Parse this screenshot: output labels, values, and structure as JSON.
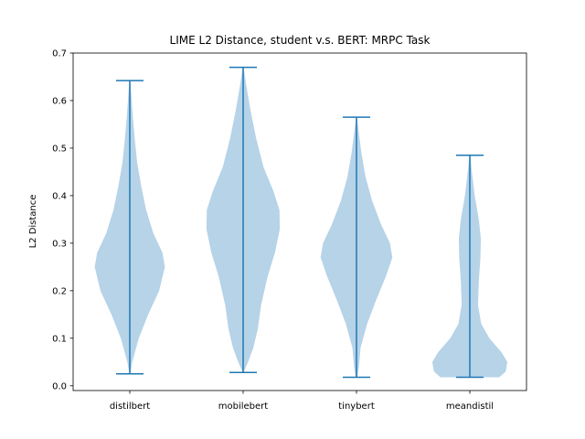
{
  "chart_data": {
    "type": "violin",
    "title": "LIME L2 Distance, student v.s. BERT: MRPC Task",
    "xlabel": "",
    "ylabel": "L2 Distance",
    "ylim": [
      -0.01,
      0.7
    ],
    "yticks": [
      0.0,
      0.1,
      0.2,
      0.3,
      0.4,
      0.5,
      0.6,
      0.7
    ],
    "ytick_labels": [
      "0.0",
      "0.1",
      "0.2",
      "0.3",
      "0.4",
      "0.5",
      "0.6",
      "0.7"
    ],
    "grid": false,
    "colors": {
      "body": "#b6d3e8",
      "lines": "#1f77b4",
      "axis": "#000000"
    },
    "categories": [
      "distilbert",
      "mobilebert",
      "tinybert",
      "meandistil"
    ],
    "series": [
      {
        "category": "distilbert",
        "min": 0.025,
        "max": 0.642,
        "profile": [
          [
            0.025,
            0.01
          ],
          [
            0.05,
            0.06
          ],
          [
            0.1,
            0.22
          ],
          [
            0.15,
            0.45
          ],
          [
            0.2,
            0.72
          ],
          [
            0.25,
            0.86
          ],
          [
            0.28,
            0.8
          ],
          [
            0.32,
            0.58
          ],
          [
            0.37,
            0.4
          ],
          [
            0.42,
            0.28
          ],
          [
            0.47,
            0.18
          ],
          [
            0.52,
            0.12
          ],
          [
            0.57,
            0.07
          ],
          [
            0.62,
            0.03
          ],
          [
            0.642,
            0.01
          ]
        ]
      },
      {
        "category": "mobilebert",
        "min": 0.028,
        "max": 0.67,
        "profile": [
          [
            0.028,
            0.01
          ],
          [
            0.05,
            0.12
          ],
          [
            0.08,
            0.25
          ],
          [
            0.12,
            0.36
          ],
          [
            0.17,
            0.44
          ],
          [
            0.23,
            0.6
          ],
          [
            0.28,
            0.78
          ],
          [
            0.33,
            0.9
          ],
          [
            0.37,
            0.89
          ],
          [
            0.41,
            0.74
          ],
          [
            0.46,
            0.5
          ],
          [
            0.52,
            0.32
          ],
          [
            0.58,
            0.18
          ],
          [
            0.63,
            0.08
          ],
          [
            0.67,
            0.01
          ]
        ]
      },
      {
        "category": "tinybert",
        "min": 0.018,
        "max": 0.565,
        "profile": [
          [
            0.018,
            0.02
          ],
          [
            0.04,
            0.06
          ],
          [
            0.08,
            0.1
          ],
          [
            0.13,
            0.26
          ],
          [
            0.18,
            0.48
          ],
          [
            0.23,
            0.72
          ],
          [
            0.27,
            0.88
          ],
          [
            0.3,
            0.82
          ],
          [
            0.34,
            0.6
          ],
          [
            0.39,
            0.38
          ],
          [
            0.44,
            0.22
          ],
          [
            0.49,
            0.12
          ],
          [
            0.53,
            0.06
          ],
          [
            0.565,
            0.01
          ]
        ]
      },
      {
        "category": "meandistil",
        "min": 0.018,
        "max": 0.485,
        "profile": [
          [
            0.018,
            0.72
          ],
          [
            0.03,
            0.88
          ],
          [
            0.05,
            0.92
          ],
          [
            0.07,
            0.78
          ],
          [
            0.1,
            0.48
          ],
          [
            0.13,
            0.28
          ],
          [
            0.17,
            0.2
          ],
          [
            0.22,
            0.22
          ],
          [
            0.27,
            0.26
          ],
          [
            0.31,
            0.27
          ],
          [
            0.35,
            0.22
          ],
          [
            0.4,
            0.12
          ],
          [
            0.45,
            0.05
          ],
          [
            0.485,
            0.01
          ]
        ]
      }
    ]
  }
}
